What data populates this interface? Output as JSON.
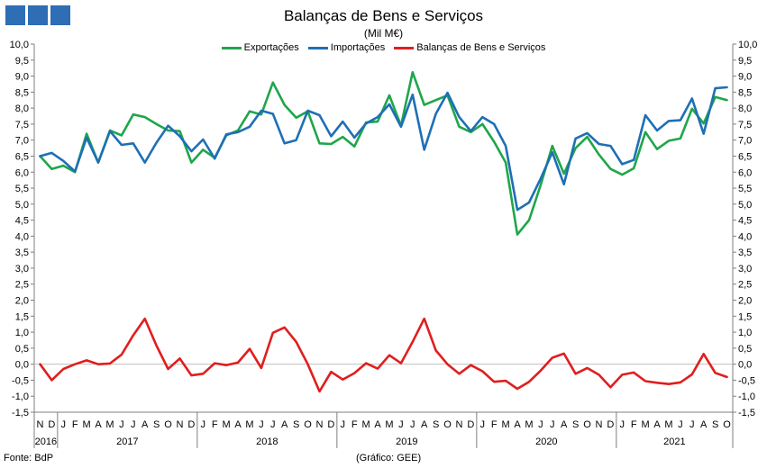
{
  "header": {
    "title": "Balanças de Bens e Serviços",
    "subtitle": "(Mil M€)"
  },
  "footer": {
    "source": "Fonte: BdP",
    "credit": "(Gráfico: GEE)"
  },
  "chart_data": {
    "type": "line",
    "title": "Balanças de Bens e Serviços",
    "subtitle": "(Mil M€)",
    "ylim": [
      -1.5,
      10.0
    ],
    "ytick_step": 0.5,
    "grid": false,
    "legend_position": "top-center",
    "x_labels": [
      "N",
      "D",
      "J",
      "F",
      "M",
      "A",
      "M",
      "J",
      "J",
      "A",
      "S",
      "O",
      "N",
      "D",
      "J",
      "F",
      "M",
      "A",
      "M",
      "J",
      "J",
      "A",
      "S",
      "O",
      "N",
      "D",
      "J",
      "F",
      "M",
      "A",
      "M",
      "J",
      "J",
      "A",
      "S",
      "O",
      "N",
      "D",
      "J",
      "F",
      "M",
      "A",
      "M",
      "J",
      "J",
      "A",
      "S",
      "O",
      "N",
      "D",
      "J",
      "F",
      "M",
      "A",
      "M",
      "J",
      "J",
      "A",
      "S",
      "O"
    ],
    "year_labels": [
      {
        "label": "2016",
        "start": 0,
        "end": 1
      },
      {
        "label": "2017",
        "start": 2,
        "end": 13
      },
      {
        "label": "2018",
        "start": 14,
        "end": 25
      },
      {
        "label": "2019",
        "start": 26,
        "end": 37
      },
      {
        "label": "2020",
        "start": 38,
        "end": 49
      },
      {
        "label": "2021",
        "start": 50,
        "end": 59
      }
    ],
    "series": [
      {
        "name": "Exportações",
        "color": "#1fa64a",
        "values": [
          6.5,
          6.1,
          6.2,
          6.0,
          7.2,
          6.3,
          7.3,
          7.15,
          7.8,
          7.72,
          7.5,
          7.3,
          7.28,
          6.3,
          6.7,
          6.45,
          7.15,
          7.3,
          7.9,
          7.8,
          8.8,
          8.1,
          7.7,
          7.9,
          6.9,
          6.88,
          7.1,
          6.8,
          7.55,
          7.58,
          8.4,
          7.45,
          9.12,
          8.1,
          8.25,
          8.4,
          7.42,
          7.25,
          7.5,
          6.95,
          6.3,
          4.05,
          4.5,
          5.6,
          6.82,
          5.95,
          6.75,
          7.1,
          6.55,
          6.1,
          5.92,
          6.12,
          7.25,
          6.72,
          6.98,
          7.05,
          7.98,
          7.52,
          8.35,
          8.25
        ]
      },
      {
        "name": "Importações",
        "color": "#1e6fb5",
        "values": [
          6.5,
          6.6,
          6.35,
          6.02,
          7.08,
          6.3,
          7.28,
          6.85,
          6.9,
          6.3,
          6.92,
          7.45,
          7.12,
          6.65,
          7.02,
          6.42,
          7.18,
          7.25,
          7.42,
          7.92,
          7.82,
          6.9,
          7.0,
          7.92,
          7.78,
          7.12,
          7.58,
          7.08,
          7.52,
          7.72,
          8.12,
          7.42,
          8.42,
          6.7,
          7.82,
          8.48,
          7.72,
          7.28,
          7.72,
          7.5,
          6.82,
          4.82,
          5.05,
          5.8,
          6.62,
          5.62,
          7.05,
          7.22,
          6.88,
          6.82,
          6.25,
          6.38,
          7.78,
          7.3,
          7.6,
          7.62,
          8.3,
          7.2,
          8.62,
          8.65
        ]
      },
      {
        "name": "Balanças de Bens e Serviços",
        "color": "#e01e1e",
        "values": [
          0.0,
          -0.5,
          -0.15,
          0.0,
          0.12,
          0.0,
          0.02,
          0.3,
          0.9,
          1.42,
          0.58,
          -0.15,
          0.18,
          -0.35,
          -0.3,
          0.03,
          -0.03,
          0.05,
          0.48,
          -0.12,
          0.98,
          1.15,
          0.7,
          0.0,
          -0.85,
          -0.24,
          -0.48,
          -0.28,
          0.03,
          -0.14,
          0.28,
          0.03,
          0.7,
          1.42,
          0.43,
          0.0,
          -0.3,
          -0.03,
          -0.22,
          -0.55,
          -0.52,
          -0.77,
          -0.55,
          -0.2,
          0.2,
          0.33,
          -0.3,
          -0.12,
          -0.33,
          -0.72,
          -0.33,
          -0.26,
          -0.53,
          -0.58,
          -0.62,
          -0.57,
          -0.32,
          0.32,
          -0.27,
          -0.4
        ]
      }
    ]
  }
}
